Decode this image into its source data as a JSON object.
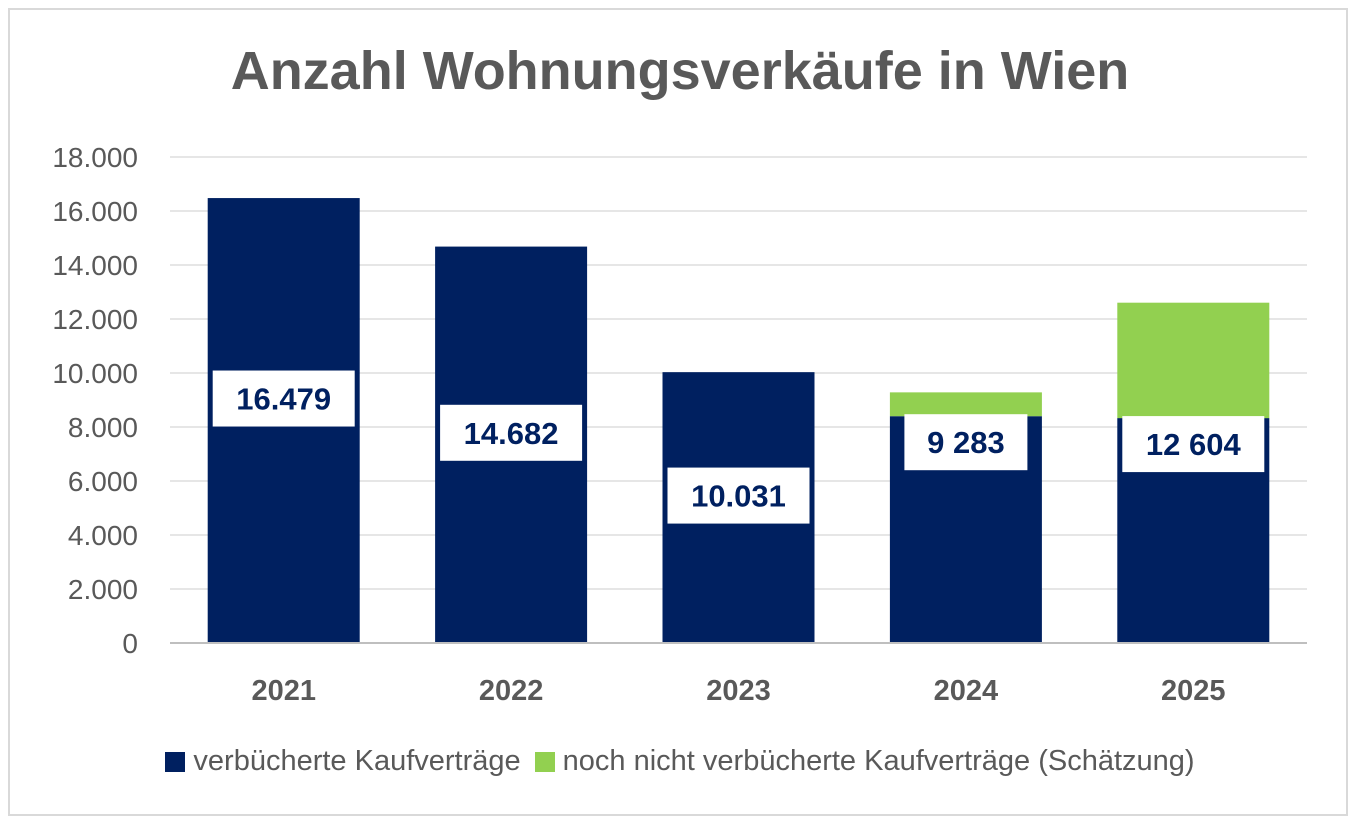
{
  "chart_data": {
    "type": "bar",
    "stacked": true,
    "title": "Anzahl Wohnungsverkäufe in Wien",
    "categories": [
      "2021",
      "2022",
      "2023",
      "2024",
      "2025"
    ],
    "series": [
      {
        "name": "verbücherte Kaufverträge",
        "color": "#002060",
        "values": [
          16479,
          14682,
          10031,
          8400,
          8330
        ]
      },
      {
        "name": "noch nicht verbücherte Kaufverträge (Schätzung)",
        "color": "#92D050",
        "values": [
          0,
          0,
          0,
          883,
          4274
        ]
      }
    ],
    "data_labels": [
      "16.479",
      "14.682",
      "10.031",
      "9 283",
      "12 604"
    ],
    "ylim": [
      0,
      18000
    ],
    "yticks": [
      "0",
      "2.000",
      "4.000",
      "6.000",
      "8.000",
      "10.000",
      "12.000",
      "14.000",
      "16.000",
      "18.000"
    ],
    "grid": true,
    "legend": "bottom"
  }
}
